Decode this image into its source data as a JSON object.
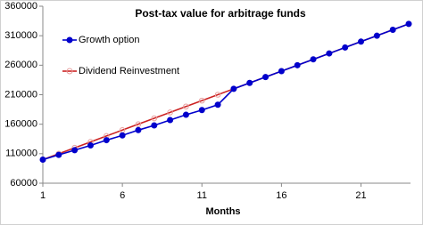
{
  "chart_data": {
    "type": "line",
    "title": "Post-tax value for arbitrage funds",
    "x_label": "Months",
    "x": [
      1,
      2,
      3,
      4,
      5,
      6,
      7,
      8,
      9,
      10,
      11,
      12,
      13,
      14,
      15,
      16,
      17,
      18,
      19,
      20,
      21,
      22,
      23,
      24
    ],
    "series": [
      {
        "name": "Growth option",
        "color": "#0000cc",
        "marker": "filled-circle",
        "values": [
          100000,
          108000,
          116000,
          124000,
          133000,
          141000,
          150000,
          158000,
          167000,
          176000,
          184000,
          193000,
          220000,
          230000,
          240000,
          250000,
          260000,
          270000,
          280000,
          290000,
          300000,
          310000,
          320000,
          330000
        ]
      },
      {
        "name": "Dividend Reinvestment",
        "color": "#cc2222",
        "marker": "open-circle",
        "values": [
          100000,
          110000,
          120000,
          130000,
          140000,
          150000,
          160000,
          170000,
          180000,
          190000,
          200000,
          210000,
          220000,
          230000,
          240000,
          250000,
          260000,
          270000,
          280000,
          290000,
          300000,
          310000,
          320000,
          330000
        ]
      }
    ],
    "xlim": [
      1,
      24
    ],
    "xticks": [
      1,
      6,
      11,
      16,
      21
    ],
    "ylim": [
      60000,
      360000
    ],
    "yticks": [
      60000,
      110000,
      160000,
      210000,
      260000,
      310000,
      360000
    ],
    "grid": false
  }
}
